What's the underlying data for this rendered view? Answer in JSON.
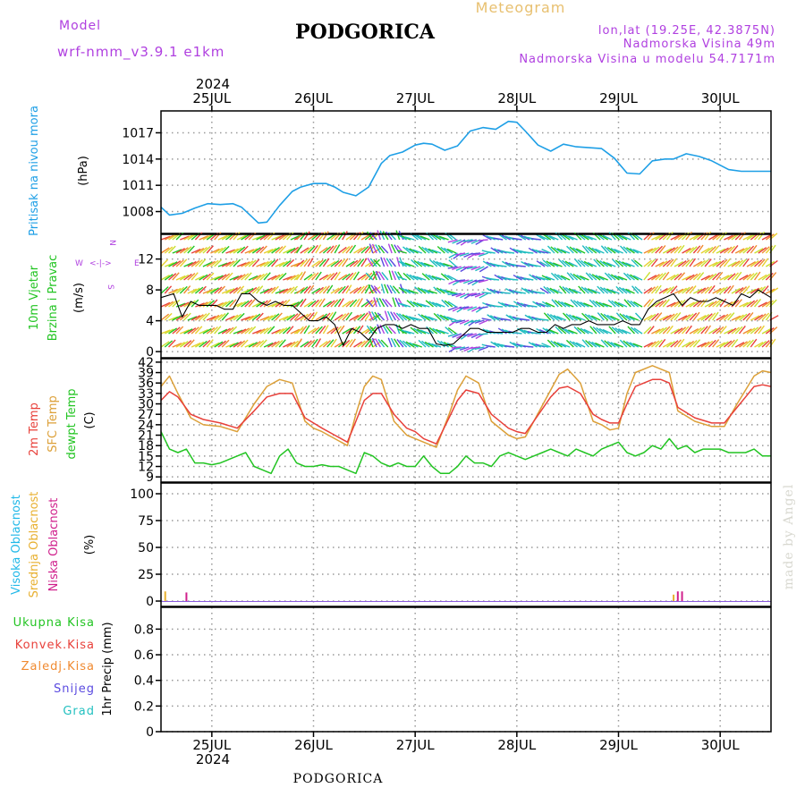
{
  "header": {
    "model_label": "Model",
    "model_name": "wrf-nmm_v3.9.1  e1km",
    "station": "PODGORICA",
    "meteogram": "Meteogram",
    "lonlat": "lon,lat (19.25E, 42.3875N)",
    "elevation": "Nadmorska Visina 49m",
    "model_elevation": "Nadmorska Visina u modelu 54.7171m"
  },
  "footer": {
    "station": "PODGORICA",
    "credit": "made by Angel"
  },
  "colors": {
    "pressure": "#1e9fe6",
    "temp2m": "#e8403a",
    "sfc_temp": "#dca038",
    "dewpt": "#22c422",
    "high_cloud": "#20b8e8",
    "mid_cloud": "#e8b030",
    "low_cloud": "#d0208c",
    "total_precip": "#22c422",
    "conv_precip": "#e8403a",
    "frozen_precip": "#f08a30",
    "snow": "#5a4ae0",
    "hail": "#22c0c0",
    "wind_speed": "#000000",
    "wind_label_a": "#22c422",
    "wind_label_b": "#22c422",
    "compass": "#b040e0"
  },
  "chart_data": [
    {
      "type": "line",
      "id": "pressure",
      "ylabel_main": "Pritisak na nivou mora",
      "ylabel_unit": "(hPa)",
      "ylim": [
        1005.5,
        1019.5
      ],
      "yticks": [
        1008,
        1011,
        1014,
        1017
      ],
      "ytick_labels": [
        "1008",
        "1011",
        "1014",
        "1017"
      ],
      "x_top_year": "2024",
      "x_start": 0,
      "x_end": 144,
      "x_unit": "hours from 2024-07-24 12 UTC",
      "day_ticks": [
        12,
        36,
        60,
        84,
        108,
        132
      ],
      "day_labels": [
        "25JUL",
        "26JUL",
        "27JUL",
        "28JUL",
        "29JUL",
        "30JUL"
      ],
      "grid": true,
      "series": [
        {
          "name": "Pritisak na nivou mora",
          "color_key": "pressure",
          "x": [
            0,
            2,
            5,
            8,
            11,
            14,
            17,
            19,
            21,
            23,
            25,
            28,
            31,
            33,
            36,
            39,
            41,
            43,
            46,
            49,
            52,
            54,
            57,
            60,
            62,
            64,
            67,
            70,
            73,
            76,
            79,
            82,
            84,
            86,
            89,
            92,
            95,
            98,
            101,
            104,
            107,
            110,
            113,
            116,
            119,
            121,
            124,
            127,
            130,
            134,
            137,
            139,
            141,
            144
          ],
          "y": [
            1008.5,
            1007.6,
            1007.8,
            1008.4,
            1008.9,
            1008.8,
            1008.9,
            1008.5,
            1007.6,
            1006.7,
            1006.8,
            1008.7,
            1010.3,
            1010.8,
            1011.2,
            1011.2,
            1010.8,
            1010.2,
            1009.8,
            1010.8,
            1013.5,
            1014.4,
            1014.8,
            1015.6,
            1015.8,
            1015.7,
            1015.0,
            1015.5,
            1017.2,
            1017.6,
            1017.4,
            1018.3,
            1018.2,
            1017.2,
            1015.6,
            1014.9,
            1015.7,
            1015.4,
            1015.3,
            1015.2,
            1014.1,
            1012.4,
            1012.3,
            1013.8,
            1014.0,
            1014.0,
            1014.6,
            1014.3,
            1013.8,
            1012.8,
            1012.6,
            1012.6,
            1012.6,
            1012.6
          ]
        }
      ]
    },
    {
      "type": "line",
      "id": "wind",
      "ylabel_main": "10m Vjetar",
      "ylabel_sub": "Brzina i Pravac",
      "ylabel_unit": "(m/s)",
      "compass": {
        "n": "N",
        "s": "S",
        "e": "E",
        "w": "W",
        "arrows": "<-|->"
      },
      "ylim": [
        -0.8,
        15.2
      ],
      "yticks": [
        0,
        4,
        8,
        12
      ],
      "ytick_labels": [
        "0",
        "4",
        "8",
        "12"
      ],
      "x_start": 0,
      "x_end": 144,
      "grid": true,
      "series": [
        {
          "name": "10m Vjetar",
          "color_key": "wind_speed",
          "x": [
            0,
            3,
            5,
            7,
            9,
            11,
            13,
            15,
            17,
            19,
            21,
            23,
            25,
            27,
            29,
            31,
            33,
            35,
            37,
            39,
            41,
            43,
            45,
            47,
            49,
            51,
            53,
            55,
            57,
            59,
            61,
            63,
            65,
            67,
            69,
            71,
            73,
            75,
            77,
            79,
            81,
            83,
            85,
            87,
            89,
            91,
            93,
            95,
            97,
            99,
            101,
            103,
            105,
            107,
            109,
            111,
            113,
            115,
            117,
            119,
            121,
            123,
            125,
            127,
            129,
            131,
            133,
            135,
            137,
            139,
            141,
            144
          ],
          "y": [
            7.0,
            7.5,
            4.5,
            6.5,
            6.0,
            6.0,
            6.0,
            5.5,
            5.5,
            7.5,
            7.5,
            6.5,
            6.0,
            6.5,
            6.0,
            6.0,
            5.0,
            4.0,
            4.0,
            4.5,
            3.5,
            0.8,
            3.0,
            2.5,
            1.5,
            3.0,
            3.5,
            3.5,
            3.0,
            3.5,
            3.0,
            3.0,
            1.0,
            0.8,
            1.0,
            2.0,
            3.0,
            3.0,
            2.5,
            2.5,
            2.5,
            2.5,
            3.0,
            3.0,
            2.5,
            2.5,
            3.5,
            3.0,
            3.5,
            3.5,
            4.0,
            3.5,
            3.5,
            3.5,
            4.0,
            3.5,
            3.5,
            5.5,
            6.5,
            7.0,
            7.5,
            6.0,
            7.0,
            6.5,
            6.5,
            7.0,
            6.5,
            6.0,
            7.5,
            7.0,
            8.0,
            7.0
          ]
        }
      ]
    },
    {
      "type": "line",
      "id": "temperature",
      "ylabel_a": "2m Temp",
      "ylabel_b": "SFC Temp",
      "ylabel_c": "dewpt Temp",
      "ylabel_unit": "(C)",
      "ylim": [
        7.5,
        43
      ],
      "yticks": [
        9,
        12,
        15,
        18,
        21,
        24,
        27,
        30,
        33,
        36,
        39,
        42
      ],
      "ytick_labels": [
        "9",
        "12",
        "15",
        "18",
        "21",
        "24",
        "27",
        "30",
        "33",
        "36",
        "39",
        "42"
      ],
      "x_start": 0,
      "x_end": 144,
      "grid": true,
      "series": [
        {
          "name": "2m Temp",
          "color_key": "temp2m",
          "x": [
            0,
            2,
            4,
            7,
            10,
            14,
            18,
            22,
            25,
            28,
            31,
            34,
            36,
            38,
            41,
            44,
            46,
            48,
            50,
            52,
            55,
            58,
            60,
            62,
            65,
            68,
            70,
            72,
            75,
            78,
            82,
            84,
            86,
            88,
            92,
            94,
            96,
            99,
            102,
            104,
            106,
            108,
            110,
            112,
            116,
            118,
            120,
            122,
            124,
            126,
            130,
            133,
            136,
            138,
            140,
            142,
            144
          ],
          "y": [
            31,
            33.5,
            32,
            27,
            25.5,
            24.5,
            23,
            28,
            32,
            33,
            33,
            26,
            24.5,
            23,
            21,
            19,
            25,
            31,
            33,
            33,
            27,
            23,
            22,
            20,
            18.5,
            26,
            31,
            34,
            33,
            27,
            23,
            22,
            21.5,
            25,
            32,
            34.5,
            35,
            33,
            27,
            25.5,
            24.5,
            24.5,
            30,
            35,
            37,
            37,
            36,
            29,
            27.5,
            26,
            24.5,
            24.5,
            29,
            32,
            35,
            35.5,
            35
          ]
        },
        {
          "name": "SFC Temp",
          "color_key": "sfc_temp",
          "x": [
            0,
            2,
            4,
            7,
            10,
            14,
            18,
            22,
            25,
            28,
            31,
            34,
            36,
            38,
            41,
            44,
            46,
            48,
            50,
            52,
            55,
            58,
            60,
            62,
            65,
            68,
            70,
            72,
            75,
            78,
            82,
            84,
            86,
            88,
            92,
            94,
            96,
            99,
            102,
            104,
            106,
            108,
            110,
            112,
            116,
            118,
            120,
            122,
            124,
            126,
            130,
            133,
            136,
            138,
            140,
            142,
            144
          ],
          "y": [
            35,
            38,
            33,
            26,
            24,
            23.5,
            22,
            30,
            35,
            37,
            36,
            25,
            23,
            22,
            20,
            18,
            27,
            35,
            38,
            37,
            25,
            21,
            20,
            19,
            17.5,
            27,
            34,
            38,
            36,
            25,
            21,
            20,
            20.5,
            25,
            34,
            38.5,
            40,
            36,
            25,
            24,
            22.5,
            23,
            33,
            39,
            41,
            40,
            39,
            28,
            26.5,
            25,
            23.5,
            23.5,
            30,
            34,
            38,
            39.5,
            39
          ]
        },
        {
          "name": "dewpt Temp",
          "color_key": "dewpt",
          "x": [
            0,
            2,
            4,
            6,
            8,
            10,
            12,
            14,
            16,
            18,
            20,
            22,
            24,
            26,
            28,
            30,
            32,
            34,
            36,
            38,
            40,
            42,
            44,
            46,
            48,
            50,
            52,
            54,
            56,
            58,
            60,
            62,
            64,
            66,
            68,
            70,
            72,
            74,
            76,
            78,
            80,
            82,
            84,
            86,
            88,
            90,
            92,
            94,
            96,
            98,
            100,
            102,
            104,
            106,
            108,
            110,
            112,
            114,
            116,
            118,
            120,
            122,
            124,
            126,
            128,
            130,
            132,
            134,
            136,
            138,
            140,
            142,
            144
          ],
          "y": [
            22,
            17,
            16,
            17,
            13,
            13,
            12.5,
            13,
            14,
            15,
            16,
            12,
            11,
            10,
            15,
            17,
            13,
            12,
            12,
            12.5,
            12,
            12,
            11,
            10,
            16,
            15,
            13,
            12,
            13,
            12,
            12,
            15,
            12,
            10,
            10,
            12,
            15,
            13,
            13,
            12,
            15,
            16,
            15,
            14,
            15,
            16,
            17,
            16,
            15,
            17,
            16,
            15,
            17,
            18,
            19,
            16,
            15,
            16,
            18,
            17,
            20,
            17,
            18,
            16,
            17,
            17,
            17,
            16,
            16,
            16,
            17,
            15,
            15
          ]
        }
      ]
    },
    {
      "type": "bar",
      "id": "cloud",
      "ylabel_a": "Visoka Oblacnost",
      "ylabel_b": "Srednja Oblacnost",
      "ylabel_c": "Niska Oblacnost",
      "ylabel_unit": "(%)",
      "ylim": [
        -5,
        110
      ],
      "yticks": [
        0,
        25,
        50,
        75,
        100
      ],
      "ytick_labels": [
        "0",
        "25",
        "50",
        "75",
        "100"
      ],
      "x_start": 0,
      "x_end": 144,
      "grid": true,
      "series": [
        {
          "name": "Visoka Oblacnost",
          "color_key": "high_cloud",
          "x": [],
          "values": []
        },
        {
          "name": "Srednja Oblacnost",
          "color_key": "mid_cloud",
          "x": [
            1,
            121
          ],
          "values": [
            9,
            6
          ]
        },
        {
          "name": "Niska Oblacnost",
          "color_key": "low_cloud",
          "x": [
            6,
            122,
            123
          ],
          "values": [
            8,
            9,
            9
          ]
        }
      ]
    },
    {
      "type": "bar",
      "id": "precip",
      "ylabel_unit": "1hr Precip (mm)",
      "legend": [
        "Ukupna Kisa",
        "Konvek.Kisa",
        "Zaledj.Kisa",
        "Snijeg",
        "Grad"
      ],
      "ylim": [
        0,
        0.97
      ],
      "yticks": [
        0,
        0.2,
        0.4,
        0.6,
        0.8
      ],
      "ytick_labels": [
        "0",
        "0.2",
        "0.4",
        "0.6",
        "0.8"
      ],
      "x_start": 0,
      "x_end": 144,
      "x_bottom_year": "2024",
      "grid": true,
      "series": [
        {
          "name": "Ukupna Kisa",
          "color_key": "total_precip",
          "x": [],
          "values": []
        }
      ]
    }
  ]
}
